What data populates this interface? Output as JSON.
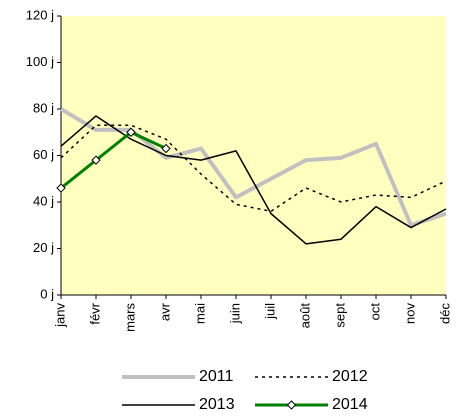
{
  "chart_data": {
    "type": "line",
    "categories": [
      "janv",
      "févr",
      "mars",
      "avr",
      "mai",
      "juin",
      "juil",
      "août",
      "sept",
      "oct",
      "nov",
      "déc"
    ],
    "series": [
      {
        "name": "2011",
        "color": "#c0c0c0",
        "width": 4,
        "dash": "solid",
        "marker": "none",
        "values": [
          80,
          71,
          71,
          59,
          63,
          42,
          50,
          58,
          59,
          65,
          30,
          35
        ]
      },
      {
        "name": "2012",
        "color": "#000000",
        "width": 1.5,
        "dash": "dotted",
        "marker": "none",
        "values": [
          59,
          73,
          73,
          67,
          52,
          39,
          36,
          46,
          40,
          43,
          42,
          49
        ]
      },
      {
        "name": "2013",
        "color": "#000000",
        "width": 1.5,
        "dash": "solid",
        "marker": "none",
        "values": [
          64,
          77,
          67,
          60,
          58,
          62,
          35,
          22,
          24,
          38,
          29,
          37
        ]
      },
      {
        "name": "2014",
        "color": "#008000",
        "width": 3,
        "dash": "solid",
        "marker": "diamond",
        "values": [
          46,
          58,
          70,
          63,
          null,
          null,
          null,
          null,
          null,
          null,
          null,
          null
        ]
      }
    ],
    "ylim": [
      0,
      120
    ],
    "yticks": [
      {
        "value": 0,
        "label": "0 j"
      },
      {
        "value": 20,
        "label": "20 j"
      },
      {
        "value": 40,
        "label": "40 j"
      },
      {
        "value": 60,
        "label": "60 j"
      },
      {
        "value": 80,
        "label": "80 j"
      },
      {
        "value": 100,
        "label": "100 j"
      },
      {
        "value": 120,
        "label": "120 j"
      }
    ],
    "plot_background": "#ffffc0",
    "grid": false,
    "legend": "bottom"
  }
}
